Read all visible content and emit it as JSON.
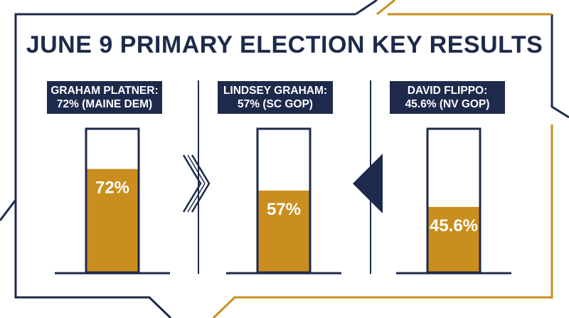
{
  "title": "JUNE 9 PRIMARY ELECTION KEY RESULTS",
  "colors": {
    "navy": "#1d2a4b",
    "gold": "#c98e1e",
    "white": "#ffffff"
  },
  "chart_data": {
    "type": "bar",
    "categories": [
      "GRAHAM PLATNER",
      "LINDSEY GRAHAM",
      "DAVID FLIPPO"
    ],
    "values": [
      72,
      57,
      45.6
    ],
    "value_labels": [
      "72%",
      "57%",
      "45.6%"
    ],
    "ylim": [
      0,
      100
    ],
    "panels": [
      {
        "label_line1": "GRAHAM PLATNER:",
        "label_line2": "72% (MAINE DEM)"
      },
      {
        "label_line1": "LINDSEY GRAHAM:",
        "label_line2": "57% (SC GOP)"
      },
      {
        "label_line1": "DAVID FLIPPO:",
        "label_line2": "45.6% (NV GOP)"
      }
    ]
  }
}
